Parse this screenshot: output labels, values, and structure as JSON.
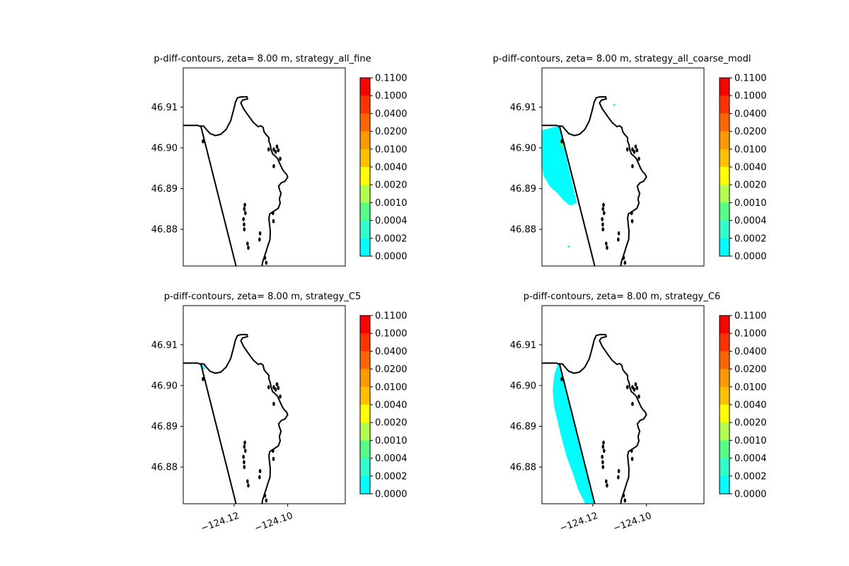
{
  "chart_data": {
    "type": "contour",
    "colorbar": {
      "levels": [
        "0.1100",
        "0.1000",
        "0.0400",
        "0.0200",
        "0.0100",
        "0.0040",
        "0.0020",
        "0.0010",
        "0.0004",
        "0.0002",
        "0.0000"
      ],
      "colors_top_to_bottom": [
        "#ff0000",
        "#ff3300",
        "#ff6600",
        "#ff9900",
        "#ffc000",
        "#ffff00",
        "#b2ff4d",
        "#55ff88",
        "#33ffcc",
        "#00ffff",
        "#ffffff"
      ]
    },
    "axes": {
      "yticks": [
        "46.91",
        "46.90",
        "46.89",
        "46.88"
      ],
      "ytick_values": [
        46.91,
        46.9,
        46.89,
        46.88
      ],
      "xticks": [
        "−124.12",
        "−124.10"
      ],
      "xtick_values": [
        -124.12,
        -124.1
      ],
      "xlim": [
        -124.139,
        -124.0785
      ],
      "ylim": [
        46.871,
        46.9196
      ]
    },
    "panels": [
      {
        "title": "p-diff-contours, zeta= 8.00 m, strategy_all_fine",
        "show_xticks": false,
        "diff_region": "none"
      },
      {
        "title": "p-diff-contours, zeta= 8.00 m, strategy_all_coarse_modl",
        "show_xticks": false,
        "diff_region": "west-of-spit"
      },
      {
        "title": "p-diff-contours, zeta= 8.00 m, strategy_C5",
        "show_xticks": true,
        "diff_region": "trace"
      },
      {
        "title": "p-diff-contours, zeta= 8.00 m, strategy_C6",
        "show_xticks": true,
        "diff_region": "west-of-spit-full"
      }
    ]
  }
}
